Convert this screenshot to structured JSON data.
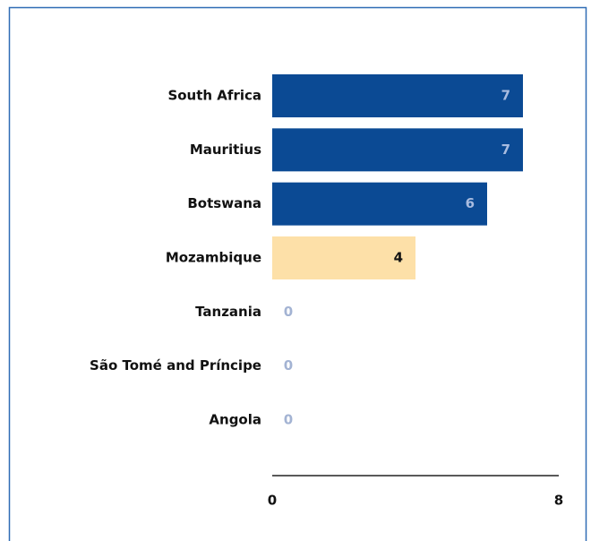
{
  "chart_data": {
    "type": "hbar",
    "categories": [
      "South Africa",
      "Mauritius",
      "Botswana",
      "Mozambique",
      "Tanzania",
      "São Tomé and Príncipe",
      "Angola"
    ],
    "values": [
      7,
      7,
      6,
      4,
      0,
      0,
      0
    ],
    "colors": [
      "#0b4a94",
      "#0b4a94",
      "#0b4a94",
      "#fde0a8",
      "#0b4a94",
      "#0b4a94",
      "#0b4a94"
    ],
    "xlim": [
      0,
      8
    ],
    "xticks": [
      0,
      8
    ],
    "grid": false
  }
}
